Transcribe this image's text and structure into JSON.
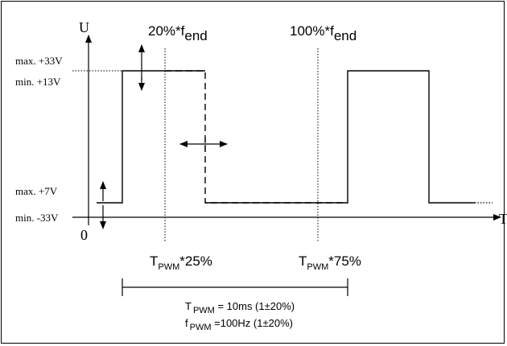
{
  "axes": {
    "y_label": "U",
    "x_label": "T",
    "origin_label": "0"
  },
  "voltage_labels": {
    "max_high": "max. +33V",
    "min_high": "min. +13V",
    "max_low": "max. +7V",
    "min_low": "min. -33V"
  },
  "frequency_markers": {
    "first": {
      "prefix": "20%*f",
      "sub": "end"
    },
    "second": {
      "prefix": "100%*f",
      "sub": "end"
    }
  },
  "period_markers": {
    "first": {
      "base": "T",
      "sub": "PWM",
      "suffix": "*25%"
    },
    "second": {
      "base": "T",
      "sub": "PWM",
      "suffix": "*75%"
    }
  },
  "formulas": {
    "period": {
      "base": "T",
      "sub": "PWM",
      "value": " = 10ms (1±20%)"
    },
    "frequency": {
      "base": "f",
      "sub": "PWM",
      "value": " =100Hz (1±20%)"
    }
  }
}
